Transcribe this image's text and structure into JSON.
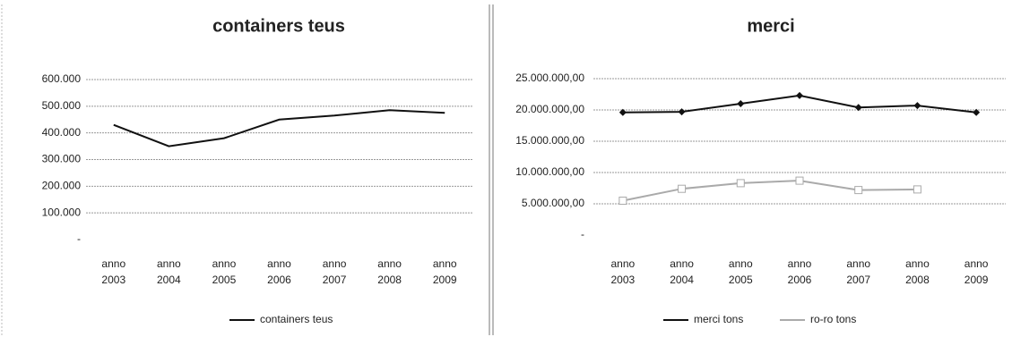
{
  "chart_data": [
    {
      "type": "line",
      "title": "containers teus",
      "categories": [
        "anno 2003",
        "anno 2004",
        "anno 2005",
        "anno 2006",
        "anno 2007",
        "anno 2008",
        "anno 2009"
      ],
      "series": [
        {
          "name": "containers teus",
          "color": "#111111",
          "values": [
            430000,
            350000,
            380000,
            450000,
            465000,
            485000,
            475000
          ]
        }
      ],
      "ylim": [
        0,
        600000
      ],
      "yticks": [
        {
          "value": 0,
          "label": "-"
        },
        {
          "value": 100000,
          "label": "100.000"
        },
        {
          "value": 200000,
          "label": "200.000"
        },
        {
          "value": 300000,
          "label": "300.000"
        },
        {
          "value": 400000,
          "label": "400.000"
        },
        {
          "value": 500000,
          "label": "500.000"
        },
        {
          "value": 600000,
          "label": "600.000"
        }
      ],
      "grid": true,
      "legend": "bottom"
    },
    {
      "type": "line",
      "title": "merci",
      "categories": [
        "anno 2003",
        "anno 2004",
        "anno 2005",
        "anno 2006",
        "anno 2007",
        "anno 2008",
        "anno 2009"
      ],
      "series": [
        {
          "name": "merci tons",
          "color": "#111111",
          "marker": "diamond",
          "values": [
            19600000,
            19700000,
            21000000,
            22300000,
            20400000,
            20700000,
            19600000
          ]
        },
        {
          "name": "ro-ro tons",
          "color": "#aaaaaa",
          "marker": "square",
          "values": [
            5500000,
            7400000,
            8300000,
            8700000,
            7200000,
            7300000,
            null
          ]
        }
      ],
      "ylim": [
        0,
        25000000
      ],
      "yticks": [
        {
          "value": 0,
          "label": "-"
        },
        {
          "value": 5000000,
          "label": "5.000.000,00"
        },
        {
          "value": 10000000,
          "label": "10.000.000,00"
        },
        {
          "value": 15000000,
          "label": "15.000.000,00"
        },
        {
          "value": 20000000,
          "label": "20.000.000,00"
        },
        {
          "value": 25000000,
          "label": "25.000.000,00"
        }
      ],
      "grid": true,
      "legend": "bottom"
    }
  ]
}
